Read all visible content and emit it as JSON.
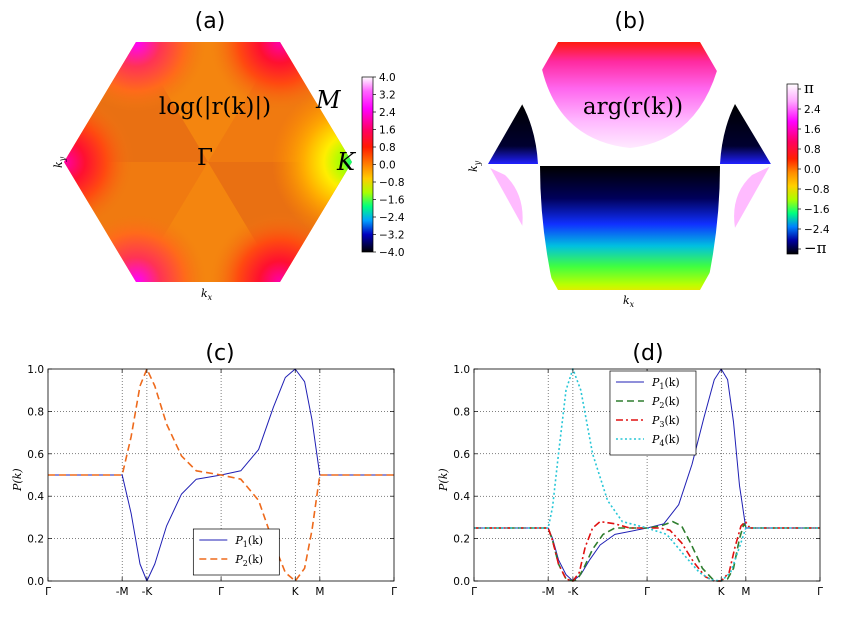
{
  "panels": {
    "a": {
      "title": "(a)",
      "formula": "log(|r(k)|)",
      "labels": {
        "M": "M",
        "K": "K",
        "Gamma": "Γ",
        "kx": "k",
        "kx_sub": "x",
        "ky": "k",
        "ky_sub": "y"
      },
      "colorbar_ticks": [
        "4.0",
        "3.2",
        "2.4",
        "1.6",
        "0.8",
        "0.0",
        "−0.8",
        "−1.6",
        "−2.4",
        "−3.2",
        "−4.0"
      ]
    },
    "b": {
      "title": "(b)",
      "formula": "arg(r(k))",
      "labels": {
        "kx": "k",
        "kx_sub": "x",
        "ky": "k",
        "ky_sub": "y"
      },
      "colorbar_ticks": [
        "π",
        "2.4",
        "1.6",
        "0.8",
        "0.0",
        "−0.8",
        "−1.6",
        "−2.4",
        "−π"
      ]
    },
    "c": {
      "title": "(c)"
    },
    "d": {
      "title": "(d)"
    }
  },
  "colors": {
    "P1": "#1f1fb4",
    "P2_c": "#ee6a1c",
    "P2_d": "#2e7d2e",
    "P3": "#e01010",
    "P4": "#26c6d6"
  },
  "chart_data": [
    {
      "id": "c",
      "type": "line",
      "title": "(c)",
      "ylabel": "P(k)",
      "xlabel": "",
      "x_ticks": [
        "Γ",
        "-M",
        "-K",
        "Γ",
        "K",
        "M",
        "Γ"
      ],
      "x_tick_positions": [
        0,
        0.5,
        0.667,
        1.167,
        1.667,
        1.833,
        2.333
      ],
      "xlim": [
        0,
        2.333
      ],
      "ylim": [
        0,
        1.0
      ],
      "y_ticks": [
        "0.0",
        "0.2",
        "0.4",
        "0.6",
        "0.8",
        "1.0"
      ],
      "grid": true,
      "legend": "bottom-center",
      "series": [
        {
          "name": "P",
          "sub": "1",
          "style": "solid",
          "points": [
            [
              0,
              0.5
            ],
            [
              0.5,
              0.5
            ],
            [
              0.56,
              0.32
            ],
            [
              0.62,
              0.08
            ],
            [
              0.667,
              0.0
            ],
            [
              0.72,
              0.08
            ],
            [
              0.8,
              0.26
            ],
            [
              0.9,
              0.41
            ],
            [
              1.0,
              0.48
            ],
            [
              1.167,
              0.5
            ],
            [
              1.3,
              0.52
            ],
            [
              1.42,
              0.62
            ],
            [
              1.52,
              0.82
            ],
            [
              1.6,
              0.96
            ],
            [
              1.667,
              1.0
            ],
            [
              1.73,
              0.94
            ],
            [
              1.78,
              0.76
            ],
            [
              1.833,
              0.5
            ],
            [
              2.333,
              0.5
            ]
          ]
        },
        {
          "name": "P",
          "sub": "2",
          "style": "dashed",
          "points": [
            [
              0,
              0.5
            ],
            [
              0.5,
              0.5
            ],
            [
              0.56,
              0.68
            ],
            [
              0.62,
              0.92
            ],
            [
              0.667,
              1.0
            ],
            [
              0.72,
              0.92
            ],
            [
              0.8,
              0.74
            ],
            [
              0.9,
              0.59
            ],
            [
              1.0,
              0.52
            ],
            [
              1.167,
              0.5
            ],
            [
              1.3,
              0.48
            ],
            [
              1.42,
              0.38
            ],
            [
              1.52,
              0.18
            ],
            [
              1.6,
              0.04
            ],
            [
              1.667,
              0.0
            ],
            [
              1.73,
              0.06
            ],
            [
              1.78,
              0.24
            ],
            [
              1.833,
              0.5
            ],
            [
              2.333,
              0.5
            ]
          ]
        }
      ]
    },
    {
      "id": "d",
      "type": "line",
      "title": "(d)",
      "ylabel": "P(k)",
      "xlabel": "",
      "x_ticks": [
        "Γ",
        "-M",
        "-K",
        "Γ",
        "K",
        "M",
        "Γ"
      ],
      "x_tick_positions": [
        0,
        0.5,
        0.667,
        1.167,
        1.667,
        1.833,
        2.333
      ],
      "xlim": [
        0,
        2.333
      ],
      "ylim": [
        0,
        1.0
      ],
      "y_ticks": [
        "0.0",
        "0.2",
        "0.4",
        "0.6",
        "0.8",
        "1.0"
      ],
      "grid": true,
      "legend": "top-left",
      "series": [
        {
          "name": "P",
          "sub": "1",
          "style": "solid",
          "points": [
            [
              0,
              0.25
            ],
            [
              0.5,
              0.25
            ],
            [
              0.53,
              0.2
            ],
            [
              0.57,
              0.1
            ],
            [
              0.62,
              0.03
            ],
            [
              0.667,
              0.0
            ],
            [
              0.72,
              0.03
            ],
            [
              0.78,
              0.1
            ],
            [
              0.85,
              0.17
            ],
            [
              0.95,
              0.22
            ],
            [
              1.167,
              0.25
            ],
            [
              1.28,
              0.27
            ],
            [
              1.38,
              0.36
            ],
            [
              1.47,
              0.55
            ],
            [
              1.55,
              0.77
            ],
            [
              1.62,
              0.95
            ],
            [
              1.667,
              1.0
            ],
            [
              1.71,
              0.95
            ],
            [
              1.75,
              0.75
            ],
            [
              1.79,
              0.45
            ],
            [
              1.833,
              0.25
            ],
            [
              2.333,
              0.25
            ]
          ]
        },
        {
          "name": "P",
          "sub": "2",
          "style": "dashed",
          "points": [
            [
              0,
              0.25
            ],
            [
              0.5,
              0.25
            ],
            [
              0.53,
              0.19
            ],
            [
              0.57,
              0.08
            ],
            [
              0.62,
              0.01
            ],
            [
              0.667,
              0.0
            ],
            [
              0.7,
              0.01
            ],
            [
              0.74,
              0.06
            ],
            [
              0.8,
              0.15
            ],
            [
              0.87,
              0.22
            ],
            [
              0.95,
              0.25
            ],
            [
              1.167,
              0.25
            ],
            [
              1.26,
              0.26
            ],
            [
              1.34,
              0.28
            ],
            [
              1.4,
              0.26
            ],
            [
              1.46,
              0.18
            ],
            [
              1.54,
              0.06
            ],
            [
              1.62,
              0.0
            ],
            [
              1.667,
              0.0
            ],
            [
              1.71,
              0.01
            ],
            [
              1.75,
              0.06
            ],
            [
              1.79,
              0.2
            ],
            [
              1.82,
              0.27
            ],
            [
              1.84,
              0.25
            ],
            [
              2.333,
              0.25
            ]
          ]
        },
        {
          "name": "P",
          "sub": "3",
          "style": "dashdot",
          "points": [
            [
              0,
              0.25
            ],
            [
              0.5,
              0.25
            ],
            [
              0.53,
              0.19
            ],
            [
              0.57,
              0.08
            ],
            [
              0.62,
              0.01
            ],
            [
              0.667,
              0.0
            ],
            [
              0.71,
              0.04
            ],
            [
              0.75,
              0.16
            ],
            [
              0.8,
              0.25
            ],
            [
              0.85,
              0.28
            ],
            [
              0.95,
              0.27
            ],
            [
              1.05,
              0.25
            ],
            [
              1.167,
              0.25
            ],
            [
              1.25,
              0.25
            ],
            [
              1.32,
              0.24
            ],
            [
              1.4,
              0.18
            ],
            [
              1.48,
              0.09
            ],
            [
              1.56,
              0.02
            ],
            [
              1.62,
              0.0
            ],
            [
              1.667,
              0.0
            ],
            [
              1.72,
              0.04
            ],
            [
              1.76,
              0.16
            ],
            [
              1.8,
              0.26
            ],
            [
              1.83,
              0.28
            ],
            [
              1.86,
              0.25
            ],
            [
              2.333,
              0.25
            ]
          ]
        },
        {
          "name": "P",
          "sub": "4",
          "style": "dotted",
          "points": [
            [
              0,
              0.25
            ],
            [
              0.5,
              0.25
            ],
            [
              0.53,
              0.35
            ],
            [
              0.57,
              0.6
            ],
            [
              0.62,
              0.9
            ],
            [
              0.667,
              1.0
            ],
            [
              0.72,
              0.9
            ],
            [
              0.8,
              0.6
            ],
            [
              0.9,
              0.38
            ],
            [
              1.0,
              0.28
            ],
            [
              1.167,
              0.25
            ],
            [
              1.3,
              0.22
            ],
            [
              1.42,
              0.12
            ],
            [
              1.52,
              0.04
            ],
            [
              1.6,
              0.005
            ],
            [
              1.667,
              0.0
            ],
            [
              1.73,
              0.04
            ],
            [
              1.79,
              0.16
            ],
            [
              1.833,
              0.25
            ],
            [
              2.333,
              0.25
            ]
          ]
        }
      ]
    }
  ]
}
